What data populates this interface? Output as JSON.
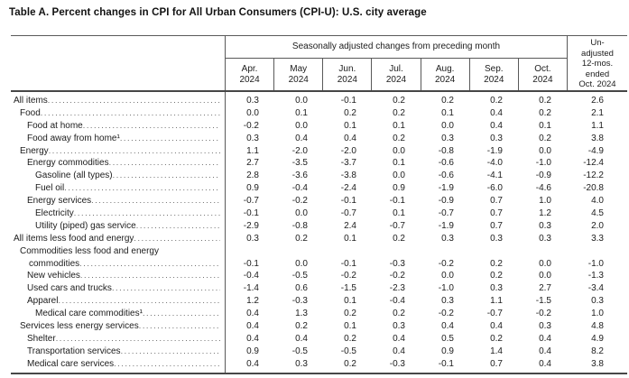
{
  "title": "Table A. Percent changes in CPI for All Urban Consumers (CPI-U): U.S. city average",
  "table": {
    "group_header": "Seasonally adjusted changes from preceding month",
    "month_columns": [
      "Apr.\n2024",
      "May\n2024",
      "Jun.\n2024",
      "Jul.\n2024",
      "Aug.\n2024",
      "Sep.\n2024",
      "Oct.\n2024"
    ],
    "unadjusted_header": "Un-\nadjusted\n12-mos.\nended\nOct. 2024",
    "rows": [
      {
        "label": "All items",
        "indent": 0,
        "values": [
          "0.3",
          "0.0",
          "-0.1",
          "0.2",
          "0.2",
          "0.2",
          "0.2",
          "2.6"
        ]
      },
      {
        "label": "Food",
        "indent": 1,
        "values": [
          "0.0",
          "0.1",
          "0.2",
          "0.2",
          "0.1",
          "0.4",
          "0.2",
          "2.1"
        ]
      },
      {
        "label": "Food at home",
        "indent": 2,
        "values": [
          "-0.2",
          "0.0",
          "0.1",
          "0.1",
          "0.0",
          "0.4",
          "0.1",
          "1.1"
        ]
      },
      {
        "label": "Food away from home¹",
        "indent": 2,
        "values": [
          "0.3",
          "0.4",
          "0.4",
          "0.2",
          "0.3",
          "0.3",
          "0.2",
          "3.8"
        ]
      },
      {
        "label": "Energy",
        "indent": 1,
        "values": [
          "1.1",
          "-2.0",
          "-2.0",
          "0.0",
          "-0.8",
          "-1.9",
          "0.0",
          "-4.9"
        ]
      },
      {
        "label": "Energy commodities",
        "indent": 2,
        "values": [
          "2.7",
          "-3.5",
          "-3.7",
          "0.1",
          "-0.6",
          "-4.0",
          "-1.0",
          "-12.4"
        ]
      },
      {
        "label": "Gasoline (all types)",
        "indent": 3,
        "values": [
          "2.8",
          "-3.6",
          "-3.8",
          "0.0",
          "-0.6",
          "-4.1",
          "-0.9",
          "-12.2"
        ]
      },
      {
        "label": "Fuel oil",
        "indent": 3,
        "values": [
          "0.9",
          "-0.4",
          "-2.4",
          "0.9",
          "-1.9",
          "-6.0",
          "-4.6",
          "-20.8"
        ]
      },
      {
        "label": "Energy services",
        "indent": 2,
        "values": [
          "-0.7",
          "-0.2",
          "-0.1",
          "-0.1",
          "-0.9",
          "0.7",
          "1.0",
          "4.0"
        ]
      },
      {
        "label": "Electricity",
        "indent": 3,
        "values": [
          "-0.1",
          "0.0",
          "-0.7",
          "0.1",
          "-0.7",
          "0.7",
          "1.2",
          "4.5"
        ]
      },
      {
        "label": "Utility (piped) gas service",
        "indent": 3,
        "values": [
          "-2.9",
          "-0.8",
          "2.4",
          "-0.7",
          "-1.9",
          "0.7",
          "0.3",
          "2.0"
        ]
      },
      {
        "label": "All items less food and energy",
        "indent": 0,
        "values": [
          "0.3",
          "0.2",
          "0.1",
          "0.2",
          "0.3",
          "0.3",
          "0.3",
          "3.3"
        ]
      },
      {
        "label": "Commodities less food and energy",
        "label2": "commodities",
        "indent": 1,
        "values": [
          "-0.1",
          "0.0",
          "-0.1",
          "-0.3",
          "-0.2",
          "0.2",
          "0.0",
          "-1.0"
        ]
      },
      {
        "label": "New vehicles",
        "indent": 2,
        "values": [
          "-0.4",
          "-0.5",
          "-0.2",
          "-0.2",
          "0.0",
          "0.2",
          "0.0",
          "-1.3"
        ]
      },
      {
        "label": "Used cars and trucks",
        "indent": 2,
        "values": [
          "-1.4",
          "0.6",
          "-1.5",
          "-2.3",
          "-1.0",
          "0.3",
          "2.7",
          "-3.4"
        ]
      },
      {
        "label": "Apparel",
        "indent": 2,
        "values": [
          "1.2",
          "-0.3",
          "0.1",
          "-0.4",
          "0.3",
          "1.1",
          "-1.5",
          "0.3"
        ]
      },
      {
        "label": "Medical care commodities¹",
        "indent": 3,
        "values": [
          "0.4",
          "1.3",
          "0.2",
          "0.2",
          "-0.2",
          "-0.7",
          "-0.2",
          "1.0"
        ]
      },
      {
        "label": "Services less energy services",
        "indent": 1,
        "values": [
          "0.4",
          "0.2",
          "0.1",
          "0.3",
          "0.4",
          "0.4",
          "0.3",
          "4.8"
        ]
      },
      {
        "label": "Shelter",
        "indent": 2,
        "values": [
          "0.4",
          "0.4",
          "0.2",
          "0.4",
          "0.5",
          "0.2",
          "0.4",
          "4.9"
        ]
      },
      {
        "label": "Transportation services",
        "indent": 2,
        "values": [
          "0.9",
          "-0.5",
          "-0.5",
          "0.4",
          "0.9",
          "1.4",
          "0.4",
          "8.2"
        ]
      },
      {
        "label": "Medical care services",
        "indent": 2,
        "values": [
          "0.4",
          "0.3",
          "0.2",
          "-0.3",
          "-0.1",
          "0.7",
          "0.4",
          "3.8"
        ]
      }
    ]
  }
}
